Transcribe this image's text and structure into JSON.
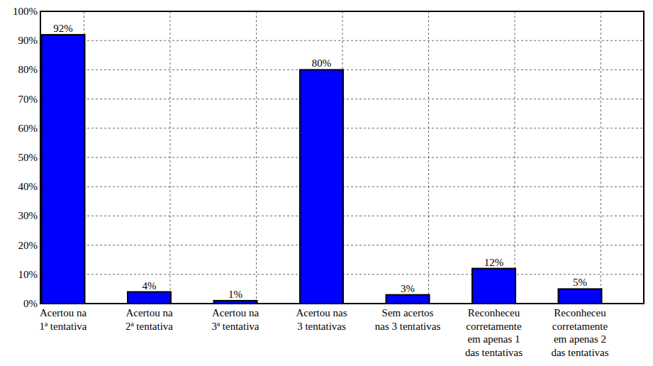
{
  "chart_data": {
    "type": "bar",
    "categories": [
      "Acertou na\n1ª tentativa",
      "Acertou na\n2ª tentativa",
      "Acertou na\n3ª tentativa",
      "Acertou nas\n3 tentativas",
      "Sem acertos\nnas 3 tentativas",
      "Reconheceu\ncorretamente\nem apenas 1\ndas tentativas",
      "Reconheceu\ncorretamente\nem apenas 2\ndas tentativas"
    ],
    "values": [
      92,
      4,
      1,
      80,
      3,
      12,
      5
    ],
    "value_labels": [
      "92%",
      "4%",
      "1%",
      "80%",
      "3%",
      "12%",
      "5%"
    ],
    "color": "#0000ff",
    "ylim": [
      0,
      100
    ],
    "yticks": [
      {
        "value": 0,
        "label": "0%"
      },
      {
        "value": 10,
        "label": "10%"
      },
      {
        "value": 20,
        "label": "20%"
      },
      {
        "value": 30,
        "label": "30%"
      },
      {
        "value": 40,
        "label": "40%"
      },
      {
        "value": 50,
        "label": "50%"
      },
      {
        "value": 60,
        "label": "60%"
      },
      {
        "value": 70,
        "label": "70%"
      },
      {
        "value": 80,
        "label": "80%"
      },
      {
        "value": 90,
        "label": "90%"
      },
      {
        "value": 100,
        "label": "100%"
      }
    ],
    "grid": true,
    "data_labels": true
  }
}
